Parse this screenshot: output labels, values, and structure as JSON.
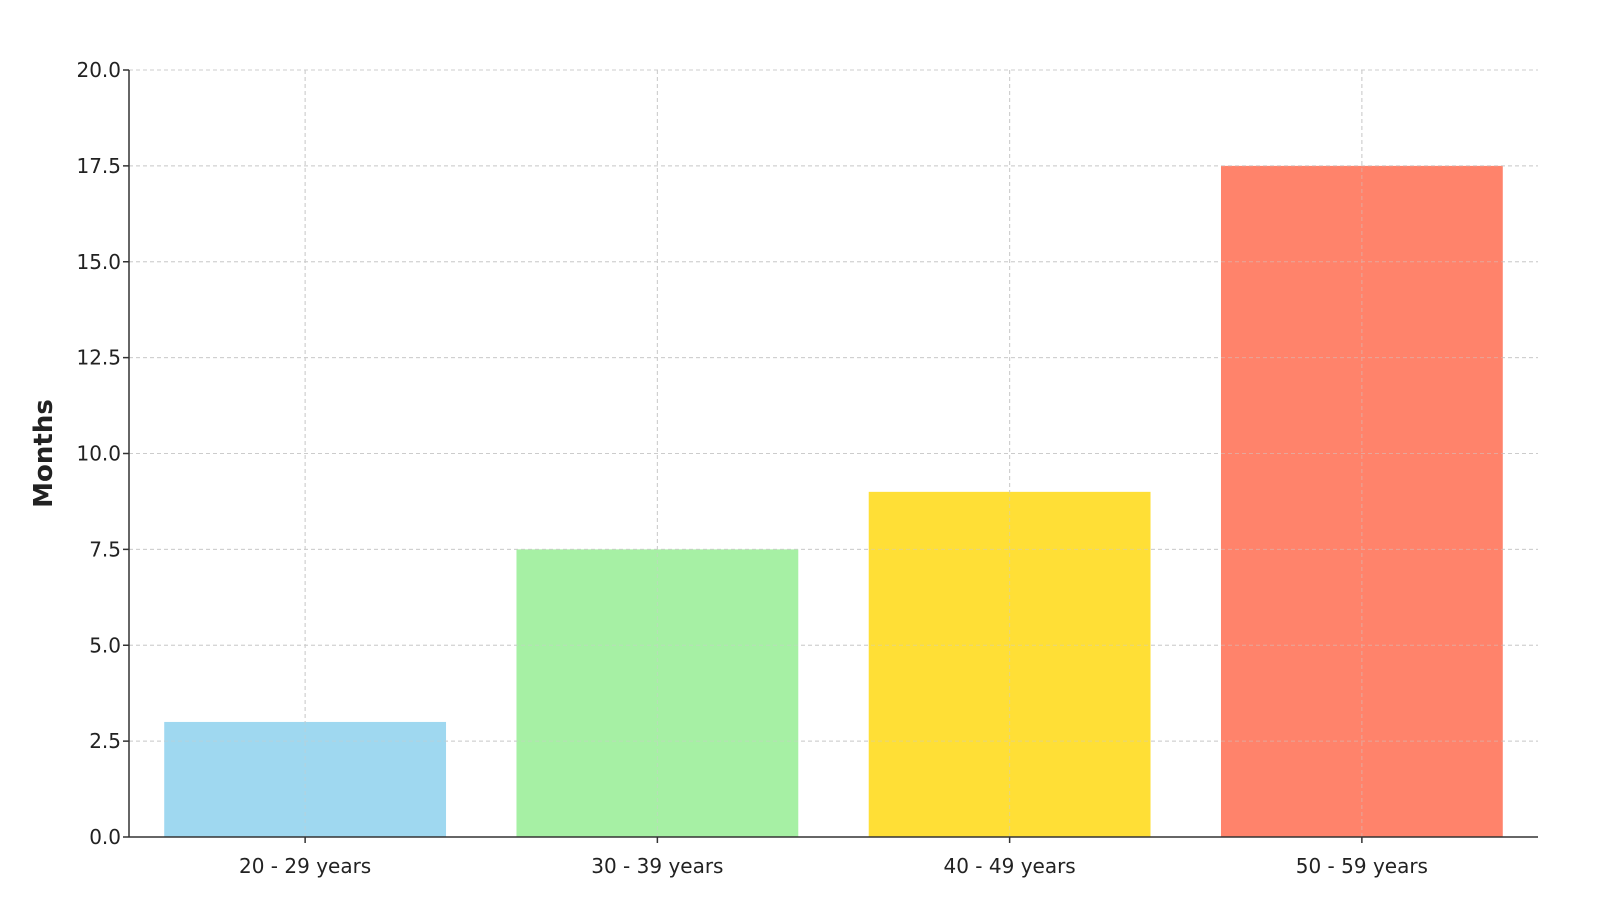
{
  "chart_data": {
    "type": "bar",
    "title": "",
    "xlabel": "",
    "ylabel": "Months",
    "categories": [
      "20 - 29 years",
      "30 - 39 years",
      "40 - 49 years",
      "50 - 59 years"
    ],
    "values": [
      3.0,
      7.5,
      9.0,
      17.5
    ],
    "colors": [
      "#9fd8f0",
      "#a6f0a4",
      "#ffdf36",
      "#ff836b"
    ],
    "ylim": [
      0,
      20
    ],
    "yticks": [
      "0.0",
      "2.5",
      "5.0",
      "7.5",
      "10.0",
      "12.5",
      "15.0",
      "17.5",
      "20.0"
    ],
    "grid": true
  }
}
